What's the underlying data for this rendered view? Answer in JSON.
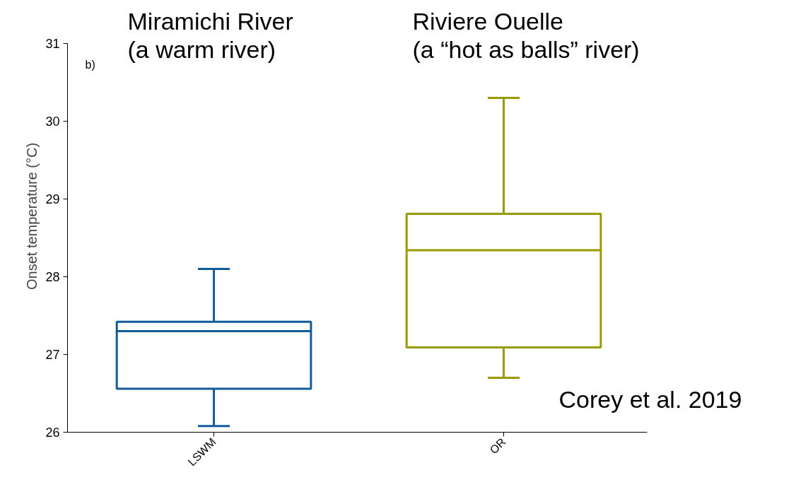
{
  "chart_data": {
    "type": "box",
    "categories": [
      "LSWM",
      "OR"
    ],
    "colors": [
      "#125b9b",
      "#999900"
    ],
    "boxes": [
      {
        "low": 26.08,
        "q1": 26.56,
        "median": 27.3,
        "q3": 27.42,
        "high": 28.1
      },
      {
        "low": 26.7,
        "q1": 27.09,
        "median": 28.34,
        "q3": 28.81,
        "high": 30.3
      }
    ],
    "ylabel": "Onset temperature (°C)",
    "ylim": [
      26,
      31
    ],
    "yticks": [
      26,
      27,
      28,
      29,
      30,
      31
    ],
    "grid": false,
    "annotations": [
      "b)",
      "Miramichi River\n(a warm river)",
      "Riviere Ouelle\n(a “hot as balls” river)",
      "Corey et al. 2019"
    ]
  }
}
